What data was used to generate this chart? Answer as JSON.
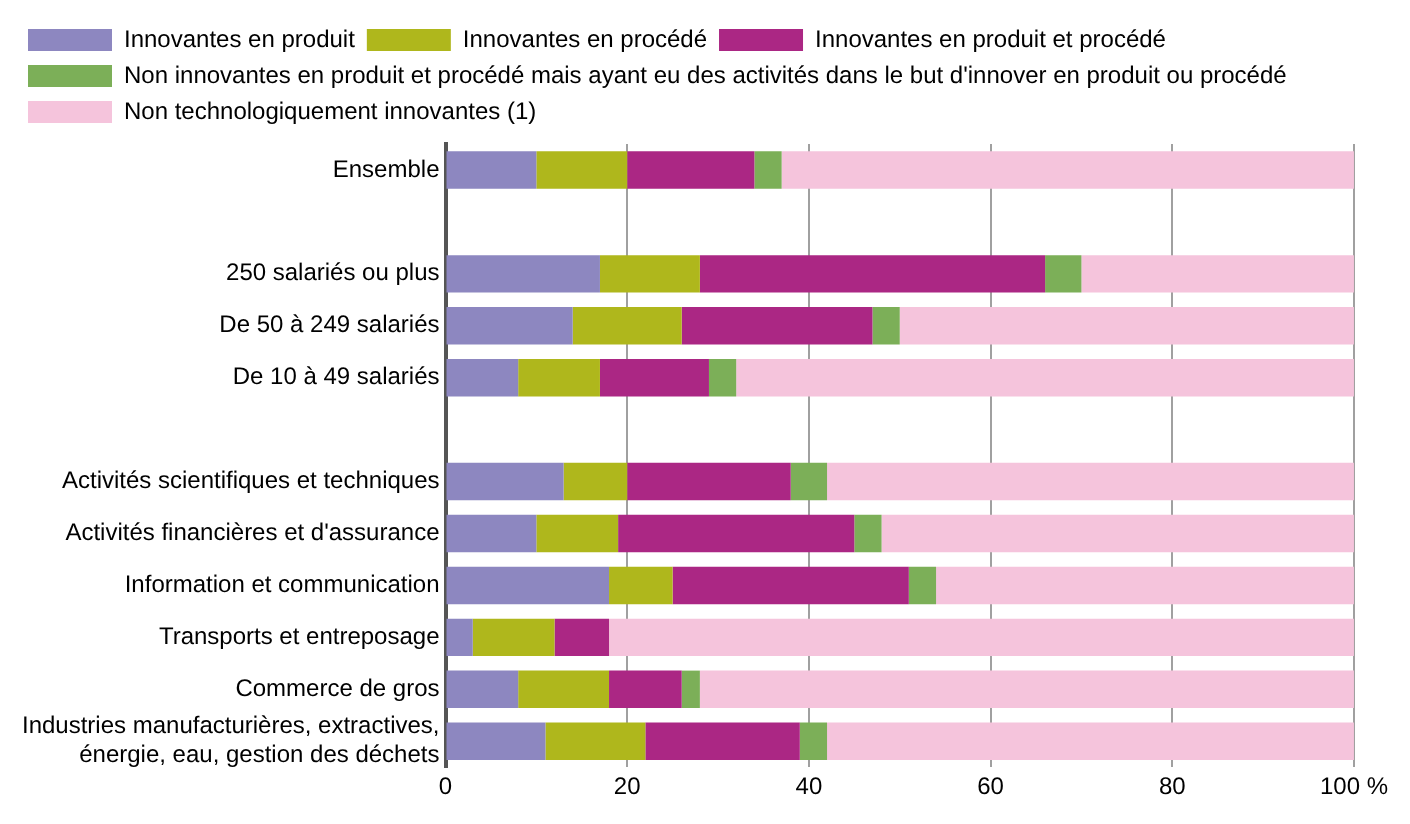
{
  "chart_data": {
    "type": "bar",
    "orientation": "horizontal",
    "stacked": true,
    "categories": [
      "Ensemble",
      null,
      "250 salariés ou plus",
      "De 50 à 249 salariés",
      "De 10 à 49 salariés",
      null,
      "Activités scientifiques et techniques",
      "Activités financières et d'assurance",
      "Information et communication",
      "Transports et entreposage",
      "Commerce de gros",
      "Industries manufacturières, extractives, énergie, eau, gestion des déchets"
    ],
    "series": [
      {
        "name": "Innovantes en produit",
        "color": "#8d87c0",
        "values": [
          10,
          null,
          17,
          14,
          8,
          null,
          13,
          10,
          18,
          3,
          8,
          11
        ]
      },
      {
        "name": "Innovantes en procédé",
        "color": "#afb71c",
        "values": [
          10,
          null,
          11,
          12,
          9,
          null,
          7,
          9,
          7,
          9,
          10,
          11
        ]
      },
      {
        "name": "Innovantes en produit et procédé",
        "color": "#ab2784",
        "values": [
          14,
          null,
          38,
          21,
          12,
          null,
          18,
          26,
          26,
          6,
          8,
          17
        ]
      },
      {
        "name": "Non innovantes en produit et procédé mais ayant eu des activités dans le but d'innover en produit ou procédé",
        "color": "#7caf58",
        "values": [
          3,
          null,
          4,
          3,
          3,
          null,
          4,
          3,
          3,
          0,
          2,
          3
        ]
      },
      {
        "name": "Non technologiquement innovantes (1)",
        "color": "#f5c4dc",
        "values": [
          63,
          null,
          30,
          50,
          68,
          null,
          58,
          52,
          46,
          82,
          72,
          58
        ]
      }
    ],
    "xlim": [
      0,
      100
    ],
    "xticks": [
      0,
      20,
      40,
      60,
      {
        "value": 80,
        "label": "80"
      },
      {
        "value": 100,
        "label": "100 %"
      }
    ],
    "grid": "x",
    "legend": "top"
  }
}
